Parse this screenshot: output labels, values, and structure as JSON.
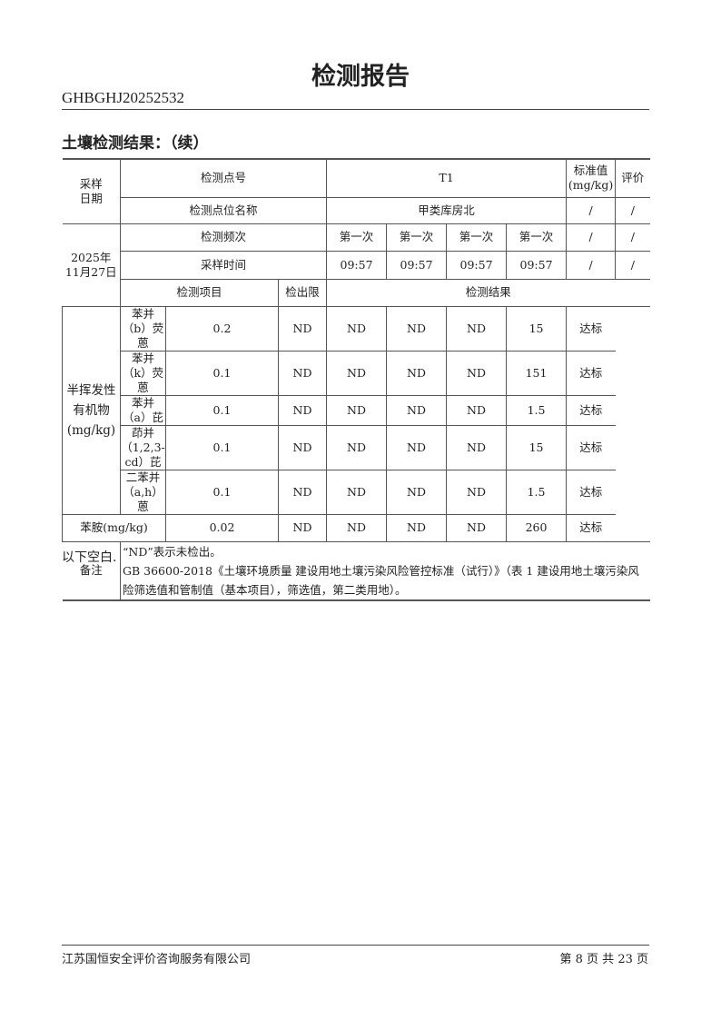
{
  "title": "检测报告",
  "report_code": "GHBGHJ20252532",
  "section": "土壤检测结果：（续）",
  "table": {
    "sampling_date_label": "采样日期",
    "point_no_label": "检测点号",
    "point_no": "T1",
    "standard_label": "标准值(mg/kg)",
    "eval_label": "评价",
    "point_name_label": "检测点位名称",
    "point_name": "甲类库房北",
    "freq_label": "检测频次",
    "freq": [
      "第一次",
      "第一次",
      "第一次",
      "第一次"
    ],
    "time_label": "采样时间",
    "time": [
      "09:57",
      "09:57",
      "09:57",
      "09:57"
    ],
    "slash": "/",
    "item_label": "检测项目",
    "limit_label": "检出限",
    "result_label": "检测结果",
    "date": "2025年11月27日",
    "group": "半挥发性有机物(mg/kg)",
    "rows": [
      {
        "item": "苯并（b）荧蒽",
        "limit": "0.2",
        "results": [
          "ND",
          "ND",
          "ND",
          "ND"
        ],
        "standard": "15",
        "eval": "达标"
      },
      {
        "item": "苯并（k）荧蒽",
        "limit": "0.1",
        "results": [
          "ND",
          "ND",
          "ND",
          "ND"
        ],
        "standard": "151",
        "eval": "达标"
      },
      {
        "item": "苯并（a）芘",
        "limit": "0.1",
        "results": [
          "ND",
          "ND",
          "ND",
          "ND"
        ],
        "standard": "1.5",
        "eval": "达标"
      },
      {
        "item": "茚并（1,2,3-cd）芘",
        "limit": "0.1",
        "results": [
          "ND",
          "ND",
          "ND",
          "ND"
        ],
        "standard": "15",
        "eval": "达标"
      },
      {
        "item": "二苯并（a,h）蒽",
        "limit": "0.1",
        "results": [
          "ND",
          "ND",
          "ND",
          "ND"
        ],
        "standard": "1.5",
        "eval": "达标"
      }
    ],
    "aniline": {
      "item": "苯胺(mg/kg)",
      "limit": "0.02",
      "results": [
        "ND",
        "ND",
        "ND",
        "ND"
      ],
      "standard": "260",
      "eval": "达标"
    },
    "remark_label": "备注",
    "remarks": [
      "“ND”表示未检出。",
      "GB 36600-2018《土壤环境质量  建设用地土壤污染风险管控标准（试行）》（表 1  建设用地土壤污染风险筛选值和管制值（基本项目），筛选值，第二类用地）。"
    ]
  },
  "blank_note": "以下空白.",
  "footer": {
    "company": "江苏国恒安全评价咨询服务有限公司",
    "page": "第 8 页 共 23 页"
  }
}
